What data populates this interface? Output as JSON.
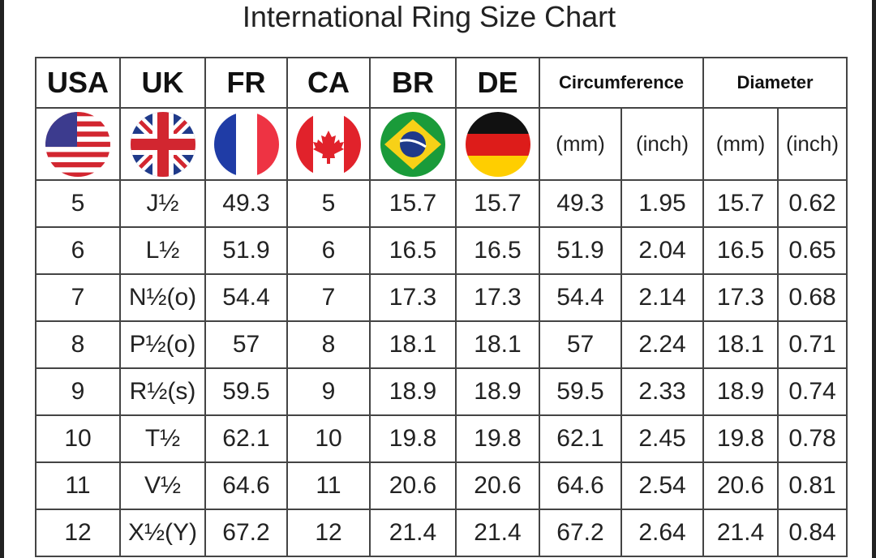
{
  "title": "International Ring Size Chart",
  "headers": [
    "USA",
    "UK",
    "FR",
    "CA",
    "BR",
    "DE",
    "Circumference",
    "Diameter"
  ],
  "flags": [
    "usa-flag",
    "uk-flag",
    "france-flag",
    "canada-flag",
    "brazil-flag",
    "germany-flag"
  ],
  "units": [
    "(mm)",
    "(inch)",
    "(mm)",
    "(inch)"
  ],
  "rows": [
    [
      "5",
      "J½",
      "49.3",
      "5",
      "15.7",
      "15.7",
      "49.3",
      "1.95",
      "15.7",
      "0.62"
    ],
    [
      "6",
      "L½",
      "51.9",
      "6",
      "16.5",
      "16.5",
      "51.9",
      "2.04",
      "16.5",
      "0.65"
    ],
    [
      "7",
      "N½(o)",
      "54.4",
      "7",
      "17.3",
      "17.3",
      "54.4",
      "2.14",
      "17.3",
      "0.68"
    ],
    [
      "8",
      "P½(o)",
      "57",
      "8",
      "18.1",
      "18.1",
      "57",
      "2.24",
      "18.1",
      "0.71"
    ],
    [
      "9",
      "R½(s)",
      "59.5",
      "9",
      "18.9",
      "18.9",
      "59.5",
      "2.33",
      "18.9",
      "0.74"
    ],
    [
      "10",
      "T½",
      "62.1",
      "10",
      "19.8",
      "19.8",
      "62.1",
      "2.45",
      "19.8",
      "0.78"
    ],
    [
      "11",
      "V½",
      "64.6",
      "11",
      "20.6",
      "20.6",
      "64.6",
      "2.54",
      "20.6",
      "0.81"
    ],
    [
      "12",
      "X½(Y)",
      "67.2",
      "12",
      "21.4",
      "21.4",
      "67.2",
      "2.64",
      "21.4",
      "0.84"
    ]
  ]
}
